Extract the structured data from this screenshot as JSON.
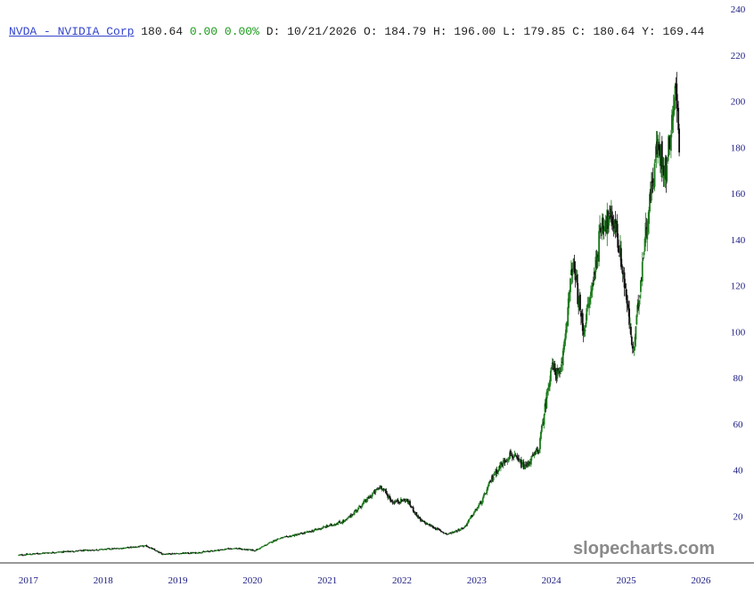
{
  "quote": {
    "symbol_label": "NVDA - NVIDIA Corp",
    "last": "180.64",
    "change": "0.00",
    "change_pct": "0.00%",
    "date_text": "D: 10/21/2026",
    "open_text": "O: 184.79",
    "high_text": "H: 196.00",
    "low_text": "L: 179.85",
    "close_text": "C: 180.64",
    "y_text": "Y: 169.44"
  },
  "watermark": "slopecharts.com",
  "colors": {
    "up": "#1a7a1a",
    "down": "#111111",
    "axis_text": "#1a1a80",
    "symbol_link": "#3344cc",
    "change_positive": "#1a9a1a"
  },
  "chart_data": {
    "type": "candlestick",
    "x_axis_type": "date",
    "ylim": [
      0,
      240
    ],
    "xlim": [
      "2017-01-01",
      "2026-06-30"
    ],
    "grid": false,
    "y_ticks": [
      20,
      40,
      60,
      80,
      100,
      120,
      140,
      160,
      180,
      200,
      220,
      240
    ],
    "x_ticks": [
      {
        "label": "2017",
        "date": "2017-01-01"
      },
      {
        "label": "2018",
        "date": "2018-01-01"
      },
      {
        "label": "2019",
        "date": "2019-01-01"
      },
      {
        "label": "2020",
        "date": "2020-01-01"
      },
      {
        "label": "2021",
        "date": "2021-01-01"
      },
      {
        "label": "2022",
        "date": "2022-01-01"
      },
      {
        "label": "2023",
        "date": "2023-01-01"
      },
      {
        "label": "2024",
        "date": "2024-01-01"
      },
      {
        "label": "2025",
        "date": "2025-01-01"
      },
      {
        "label": "2026",
        "date": "2026-01-01"
      }
    ],
    "close_path": [
      {
        "date": "2017-01-15",
        "close": 3
      },
      {
        "date": "2017-06-01",
        "close": 4
      },
      {
        "date": "2017-12-01",
        "close": 5
      },
      {
        "date": "2018-06-01",
        "close": 6
      },
      {
        "date": "2018-10-01",
        "close": 7
      },
      {
        "date": "2018-12-15",
        "close": 3.5
      },
      {
        "date": "2019-06-01",
        "close": 4
      },
      {
        "date": "2019-12-01",
        "close": 6
      },
      {
        "date": "2020-03-15",
        "close": 5
      },
      {
        "date": "2020-07-01",
        "close": 10
      },
      {
        "date": "2020-12-01",
        "close": 13
      },
      {
        "date": "2021-06-01",
        "close": 18
      },
      {
        "date": "2021-11-20",
        "close": 33
      },
      {
        "date": "2022-01-15",
        "close": 26
      },
      {
        "date": "2022-03-25",
        "close": 27
      },
      {
        "date": "2022-06-01",
        "close": 18
      },
      {
        "date": "2022-10-10",
        "close": 12
      },
      {
        "date": "2023-01-01",
        "close": 15
      },
      {
        "date": "2023-04-01",
        "close": 27
      },
      {
        "date": "2023-05-25",
        "close": 38
      },
      {
        "date": "2023-08-15",
        "close": 47
      },
      {
        "date": "2023-10-25",
        "close": 41
      },
      {
        "date": "2024-01-01",
        "close": 49
      },
      {
        "date": "2024-03-01",
        "close": 85
      },
      {
        "date": "2024-04-15",
        "close": 80
      },
      {
        "date": "2024-06-15",
        "close": 130
      },
      {
        "date": "2024-08-05",
        "close": 100
      },
      {
        "date": "2024-09-15",
        "close": 118
      },
      {
        "date": "2024-11-05",
        "close": 148
      },
      {
        "date": "2025-01-06",
        "close": 148
      },
      {
        "date": "2025-02-15",
        "close": 126
      },
      {
        "date": "2025-04-07",
        "close": 90
      },
      {
        "date": "2025-06-01",
        "close": 140
      },
      {
        "date": "2025-08-01",
        "close": 180
      },
      {
        "date": "2025-09-15",
        "close": 170
      },
      {
        "date": "2025-10-29",
        "close": 207
      },
      {
        "date": "2025-11-20",
        "close": 180
      }
    ]
  }
}
